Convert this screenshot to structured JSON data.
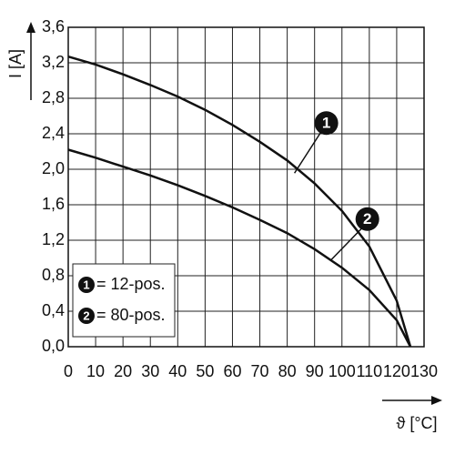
{
  "chart_data": {
    "type": "line",
    "y_label": "I [A]",
    "x_label": "ϑ [°C]",
    "x": [
      0,
      10,
      20,
      30,
      40,
      50,
      60,
      70,
      80,
      90,
      100,
      110,
      120,
      125
    ],
    "series": [
      {
        "name": "= 12-pos.",
        "badge": "1",
        "color": "#111111",
        "values": [
          3.27,
          3.18,
          3.07,
          2.95,
          2.82,
          2.67,
          2.5,
          2.31,
          2.1,
          1.84,
          1.53,
          1.13,
          0.52,
          0
        ]
      },
      {
        "name": "= 80-pos.",
        "badge": "2",
        "color": "#111111",
        "values": [
          2.22,
          2.13,
          2.03,
          1.93,
          1.82,
          1.7,
          1.57,
          1.43,
          1.28,
          1.1,
          0.89,
          0.64,
          0.3,
          0
        ]
      }
    ],
    "xlim": [
      0,
      130
    ],
    "xticks": [
      0,
      10,
      20,
      30,
      40,
      50,
      60,
      70,
      80,
      90,
      100,
      110,
      120,
      130
    ],
    "ylim": [
      0,
      3.6
    ],
    "yticks": [
      {
        "value": 0,
        "label": "0,0"
      },
      {
        "value": 0.4,
        "label": "0,4"
      },
      {
        "value": 0.8,
        "label": "0,8"
      },
      {
        "value": 1.2,
        "label": "1,2"
      },
      {
        "value": 1.6,
        "label": "1,6"
      },
      {
        "value": 2.0,
        "label": "2,0"
      },
      {
        "value": 2.4,
        "label": "2,4"
      },
      {
        "value": 2.8,
        "label": "2,8"
      },
      {
        "value": 3.2,
        "label": "3,2"
      },
      {
        "value": 3.6,
        "label": "3,6"
      }
    ],
    "grid": true
  }
}
